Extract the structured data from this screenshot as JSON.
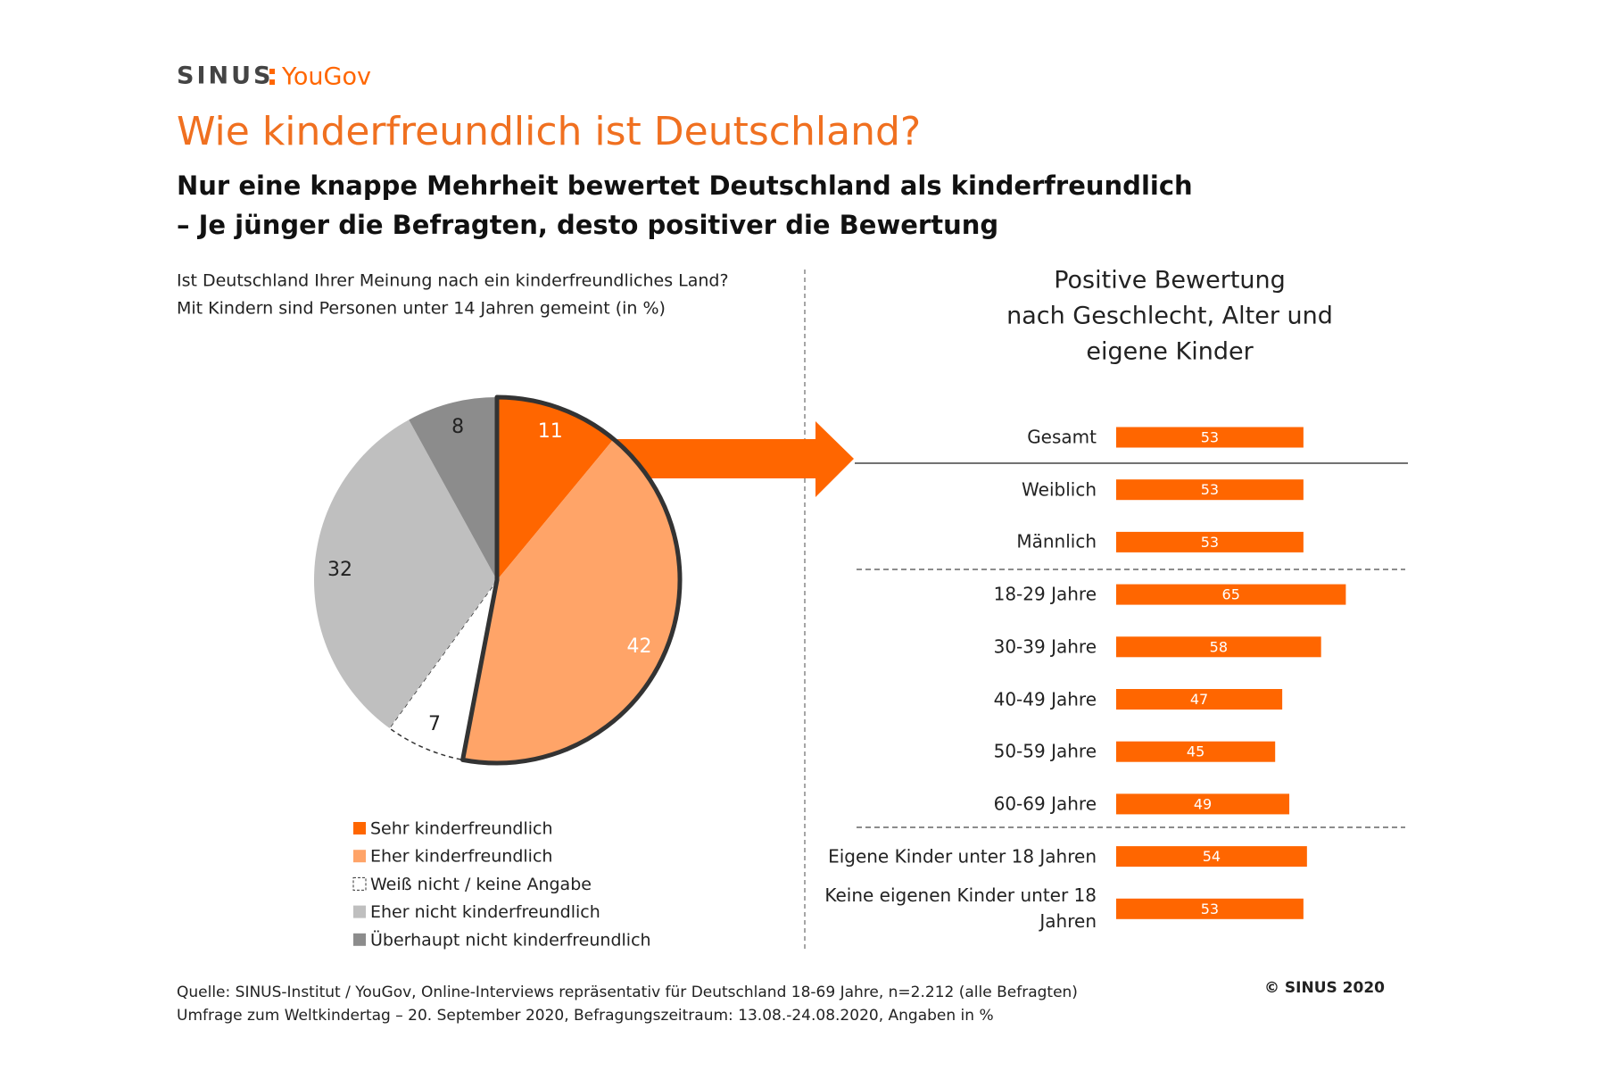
{
  "logo": {
    "left": "SINUS",
    "right": "YouGov"
  },
  "title": "Wie kinderfreundlich ist Deutschland?",
  "subtitle": [
    "Nur eine knappe Mehrheit bewertet Deutschland als kinderfreundlich",
    "– Je jünger die Befragten, desto positiver die Bewertung"
  ],
  "chart_data": [
    {
      "type": "pie",
      "title": [
        "Ist Deutschland Ihrer Meinung nach ein kinderfreundliches Land?",
        "Mit Kindern sind Personen unter 14 Jahren gemeint (in %)"
      ],
      "categories": [
        "Sehr kinderfreundlich",
        "Eher kinderfreundlich",
        "Weiß nicht / keine Angabe",
        "Eher nicht kinderfreundlich",
        "Überhaupt nicht kinderfreundlich"
      ],
      "values": [
        11,
        42,
        7,
        32,
        8
      ],
      "colors": [
        "#ff6600",
        "#ffa468",
        "#ffffff",
        "#bfbfbf",
        "#8c8c8c"
      ]
    },
    {
      "type": "bar",
      "title": [
        "Positive Bewertung",
        "nach Geschlecht, Alter und",
        "eigene Kinder"
      ],
      "categories": [
        "Gesamt",
        "Weiblich",
        "Männlich",
        "18-29 Jahre",
        "30-39 Jahre",
        "40-49 Jahre",
        "50-59 Jahre",
        "60-69 Jahre",
        "Eigene Kinder unter 18 Jahren",
        "Keine eigenen Kinder unter 18 Jahren"
      ],
      "values": [
        53,
        53,
        53,
        65,
        58,
        47,
        45,
        49,
        54,
        53
      ],
      "color": "#ff6600"
    }
  ],
  "footer": [
    "Quelle: SINUS-Institut / YouGov, Online-Interviews repräsentativ für Deutschland 18-69 Jahre, n=2.212 (alle Befragten)",
    "Umfrage zum Weltkindertag – 20. September 2020, Befragungszeitraum: 13.08.-24.08.2020, Angaben in %"
  ],
  "copyright": "© SINUS 2020"
}
